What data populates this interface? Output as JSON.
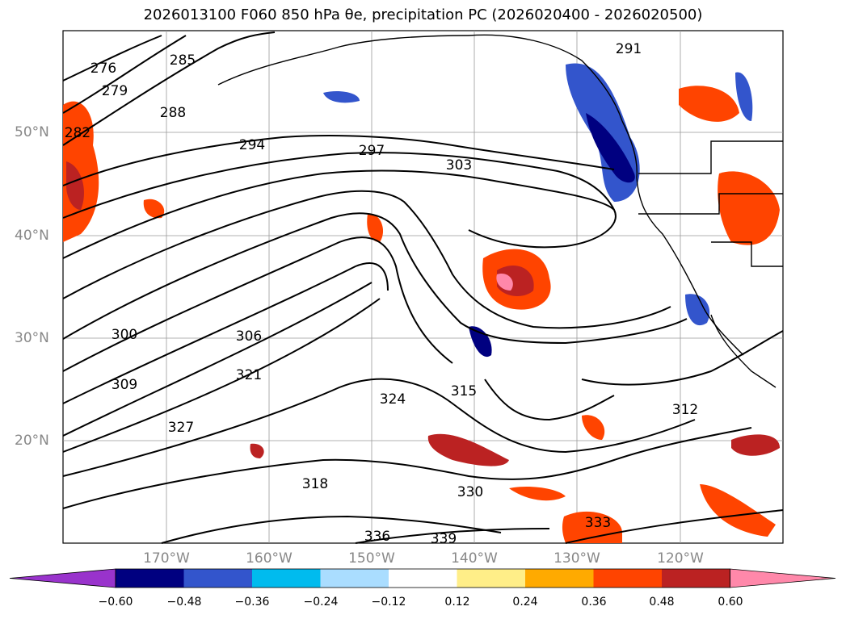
{
  "title": "2026013100 F060 850 hPa θe, precipitation PC (2026020400 - 2026020500)",
  "map": {
    "lat_labels": [
      "50°N",
      "40°N",
      "30°N",
      "20°N"
    ],
    "lon_labels": [
      "170°W",
      "160°W",
      "150°W",
      "140°W",
      "130°W",
      "120°W"
    ],
    "contour_labels": [
      "276",
      "279",
      "282",
      "285",
      "288",
      "291",
      "294",
      "297",
      "300",
      "303",
      "306",
      "309",
      "312",
      "315",
      "318",
      "321",
      "324",
      "327",
      "330",
      "333",
      "336",
      "339"
    ]
  },
  "colorbar": {
    "ticks": [
      "−0.60",
      "−0.48",
      "−0.36",
      "−0.24",
      "−0.12",
      "0.12",
      "0.24",
      "0.36",
      "0.48",
      "0.60"
    ],
    "colors": [
      "#9933cc",
      "#000080",
      "#3355cc",
      "#00bbee",
      "#aaddff",
      "#ffffff",
      "#ffee88",
      "#ffaa00",
      "#ff4400",
      "#bb2222",
      "#ff88aa"
    ]
  }
}
